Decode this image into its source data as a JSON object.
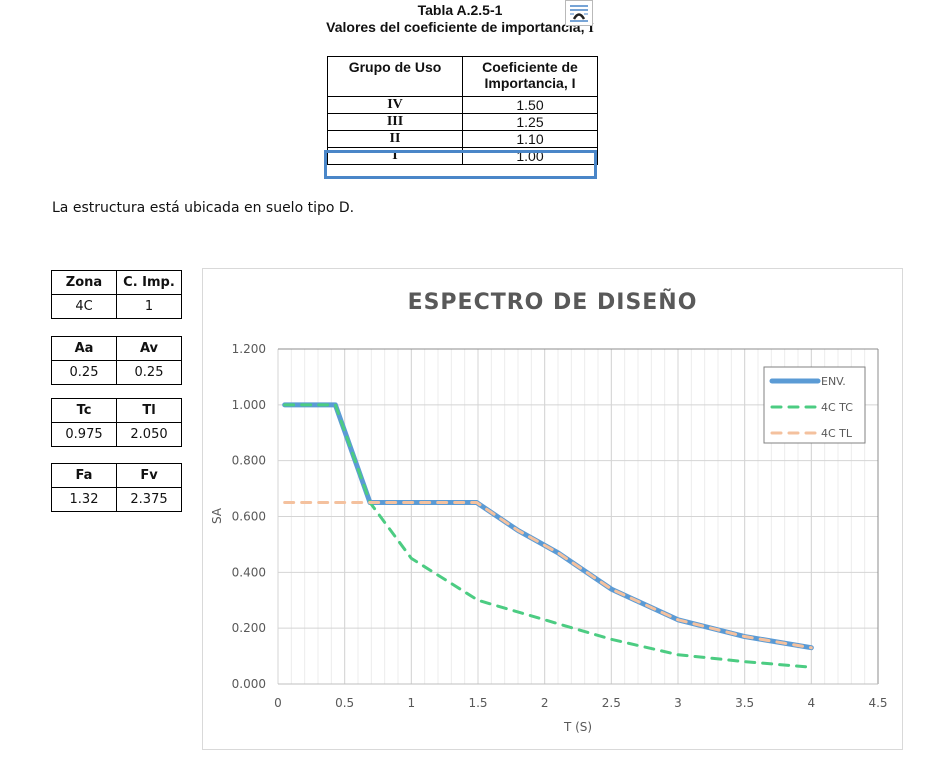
{
  "document": {
    "table_caption": "Tabla A.2.5-1",
    "table_subtitle": "Valores del coeficiente de importancia,",
    "table_subtitle_symbol": "I",
    "layout_options_icon": "layout-options-icon",
    "importance_table": {
      "headers": [
        "Grupo de Uso",
        "Coeficiente de Importancia, I"
      ],
      "rows": [
        {
          "grupo": "IV",
          "coef": "1.50"
        },
        {
          "grupo": "III",
          "coef": "1.25"
        },
        {
          "grupo": "II",
          "coef": "1.10"
        },
        {
          "grupo": "I",
          "coef": "1.00",
          "highlighted": true
        }
      ],
      "highlight_color": "#4a86c8"
    },
    "paragraph": "La estructura está ubicada en suelo tipo D.",
    "params": [
      {
        "h1": "Zona",
        "h2": "C. Imp.",
        "v1": "4C",
        "v2": "1"
      },
      {
        "h1": "Aa",
        "h2": "Av",
        "v1": "0.25",
        "v2": "0.25"
      },
      {
        "h1": "Tc",
        "h2": "Tl",
        "v1": "0.975",
        "v2": "2.050"
      },
      {
        "h1": "Fa",
        "h2": "Fv",
        "v1": "1.32",
        "v2": "2.375"
      }
    ]
  },
  "chart_data": {
    "type": "line",
    "title": "ESPECTRO DE DISEÑO",
    "xlabel": "T (S)",
    "ylabel": "SA",
    "xlim": [
      0,
      4.5
    ],
    "ylim": [
      0,
      1.2
    ],
    "x_ticks": [
      "0",
      "0.5",
      "1",
      "1.5",
      "2",
      "2.5",
      "3",
      "3.5",
      "4",
      "4.5"
    ],
    "y_ticks": [
      "0.000",
      "0.200",
      "0.400",
      "0.600",
      "0.800",
      "1.000",
      "1.200"
    ],
    "grid": {
      "major_x": 0.5,
      "minor_x": 0.1,
      "major_y": 0.2
    },
    "legend_position": "upper right",
    "series": [
      {
        "name": "ENV.",
        "color": "#5b9bd5",
        "style": "solid",
        "x": [
          0.05,
          0.43,
          0.69,
          1.49,
          1.8,
          2.1,
          2.5,
          3.0,
          3.5,
          4.0
        ],
        "y": [
          1.0,
          1.0,
          0.65,
          0.65,
          0.55,
          0.47,
          0.34,
          0.23,
          0.17,
          0.13
        ]
      },
      {
        "name": "4C TC",
        "color": "#4ccc82",
        "style": "dashed",
        "x": [
          0.05,
          0.43,
          0.69,
          1.0,
          1.5,
          2.0,
          2.5,
          3.0,
          3.5,
          4.0
        ],
        "y": [
          1.0,
          1.0,
          0.65,
          0.45,
          0.3,
          0.23,
          0.16,
          0.105,
          0.08,
          0.06
        ]
      },
      {
        "name": "4C TL",
        "color": "#f4c19e",
        "style": "dashed",
        "x": [
          0.05,
          1.49,
          1.8,
          2.1,
          2.5,
          3.0,
          3.5,
          4.0
        ],
        "y": [
          0.65,
          0.65,
          0.55,
          0.47,
          0.34,
          0.23,
          0.17,
          0.13
        ]
      }
    ]
  }
}
